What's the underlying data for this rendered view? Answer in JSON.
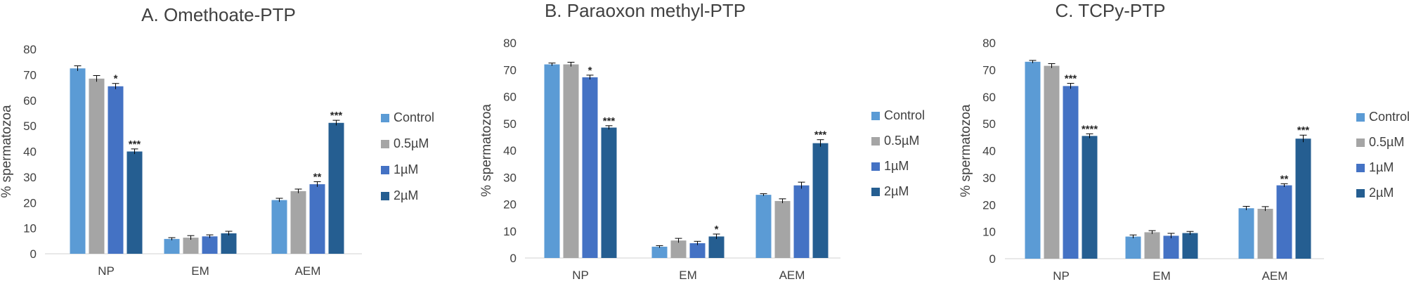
{
  "chart_data": [
    {
      "type": "bar",
      "title": "A. Omethoate-PTP",
      "ylabel": "% spermatozoa",
      "xlabel": "",
      "ylim": [
        0,
        80
      ],
      "yticks": [
        0,
        10,
        20,
        30,
        40,
        50,
        60,
        70,
        80
      ],
      "categories": [
        "NP",
        "EM",
        "AEM"
      ],
      "legend_position": "right",
      "series": [
        {
          "name": "Control",
          "color": "#5B9BD5",
          "values": [
            72.5,
            5.8,
            21.0
          ],
          "errors": [
            1.0,
            0.5,
            0.7
          ],
          "sig": [
            "",
            "",
            ""
          ]
        },
        {
          "name": "0.5µM",
          "color": "#A5A5A5",
          "values": [
            68.5,
            6.3,
            24.5
          ],
          "errors": [
            1.2,
            0.8,
            0.8
          ],
          "sig": [
            "",
            "",
            ""
          ]
        },
        {
          "name": "1µM",
          "color": "#4472C4",
          "values": [
            65.5,
            6.8,
            27.2
          ],
          "errors": [
            1.1,
            0.6,
            1.0
          ],
          "sig": [
            "*",
            "",
            "**"
          ]
        },
        {
          "name": "2µM",
          "color": "#255E91",
          "values": [
            40.0,
            8.0,
            51.2
          ],
          "errors": [
            1.0,
            0.8,
            1.0
          ],
          "sig": [
            "***",
            "",
            "***"
          ]
        }
      ]
    },
    {
      "type": "bar",
      "title": "B. Paraoxon methyl-PTP",
      "ylabel": "% spermatozoa",
      "xlabel": "",
      "ylim": [
        0,
        80
      ],
      "yticks": [
        0,
        10,
        20,
        30,
        40,
        50,
        60,
        70,
        80
      ],
      "categories": [
        "NP",
        "EM",
        "AEM"
      ],
      "legend_position": "right",
      "series": [
        {
          "name": "Control",
          "color": "#5B9BD5",
          "values": [
            72.0,
            4.2,
            23.5
          ],
          "errors": [
            0.5,
            0.4,
            0.4
          ],
          "sig": [
            "",
            "",
            ""
          ]
        },
        {
          "name": "0.5µM",
          "color": "#A5A5A5",
          "values": [
            72.0,
            6.5,
            21.2
          ],
          "errors": [
            0.8,
            0.8,
            0.8
          ],
          "sig": [
            "",
            "",
            ""
          ]
        },
        {
          "name": "1µM",
          "color": "#4472C4",
          "values": [
            67.2,
            5.5,
            27.0
          ],
          "errors": [
            0.8,
            0.7,
            1.2
          ],
          "sig": [
            "*",
            "",
            ""
          ]
        },
        {
          "name": "2µM",
          "color": "#255E91",
          "values": [
            48.5,
            8.0,
            42.7
          ],
          "errors": [
            0.7,
            0.9,
            1.3
          ],
          "sig": [
            "***",
            "*",
            "***"
          ]
        }
      ]
    },
    {
      "type": "bar",
      "title": "C. TCPy-PTP",
      "ylabel": "% spermatozoa",
      "xlabel": "",
      "ylim": [
        0,
        80
      ],
      "yticks": [
        0,
        10,
        20,
        30,
        40,
        50,
        60,
        70,
        80
      ],
      "categories": [
        "NP",
        "EM",
        "AEM"
      ],
      "legend_position": "right",
      "series": [
        {
          "name": "Control",
          "color": "#5B9BD5",
          "values": [
            73.0,
            8.2,
            18.7
          ],
          "errors": [
            0.5,
            0.6,
            0.7
          ],
          "sig": [
            "",
            "",
            ""
          ]
        },
        {
          "name": "0.5µM",
          "color": "#A5A5A5",
          "values": [
            71.5,
            9.8,
            18.5
          ],
          "errors": [
            0.8,
            0.6,
            0.8
          ],
          "sig": [
            "",
            "",
            ""
          ]
        },
        {
          "name": "1µM",
          "color": "#4472C4",
          "values": [
            64.0,
            8.5,
            27.2
          ],
          "errors": [
            1.0,
            0.9,
            0.6
          ],
          "sig": [
            "***",
            "",
            "**"
          ]
        },
        {
          "name": "2µM",
          "color": "#255E91",
          "values": [
            45.5,
            9.5,
            44.5
          ],
          "errors": [
            0.8,
            0.6,
            1.3
          ],
          "sig": [
            "****",
            "",
            "***"
          ]
        }
      ]
    }
  ]
}
